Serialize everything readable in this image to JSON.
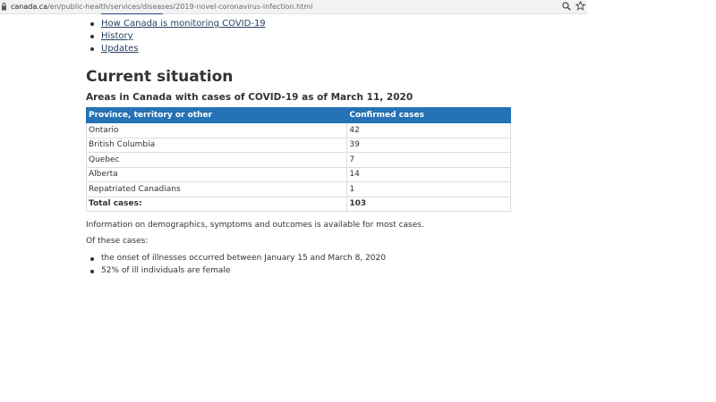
{
  "browser": {
    "url_host": "canada.ca",
    "url_path": "/en/public-health/services/diseases/2019-novel-coronavirus-infection.html",
    "icons": {
      "lock": "lock-icon",
      "zoom": "zoom-icon",
      "bookmark": "star-icon"
    }
  },
  "nav_links": [
    "How Canada is monitoring COVID-19",
    "History",
    "Updates"
  ],
  "section": {
    "title": "Current situation",
    "table_caption": "Areas in Canada with cases of COVID-19 as of March 11, 2020"
  },
  "cases_table": {
    "headers": [
      "Province, territory or other",
      "Confirmed cases"
    ],
    "rows": [
      {
        "area": "Ontario",
        "cases": "42"
      },
      {
        "area": "British Columbia",
        "cases": "39"
      },
      {
        "area": "Quebec",
        "cases": "7"
      },
      {
        "area": "Alberta",
        "cases": "14"
      },
      {
        "area": "Repatriated Canadians",
        "cases": "1"
      }
    ],
    "total": {
      "label": "Total cases:",
      "value": "103"
    }
  },
  "info": {
    "demographics": "Information on demographics, symptoms and outcomes is available for most cases.",
    "of_these": "Of these cases:",
    "facts": [
      "the onset of illnesses occurred between January 15 and March 8, 2020",
      "52% of ill individuals are female"
    ]
  },
  "colors": {
    "table_header": "#2572b4",
    "link": "#284162"
  }
}
